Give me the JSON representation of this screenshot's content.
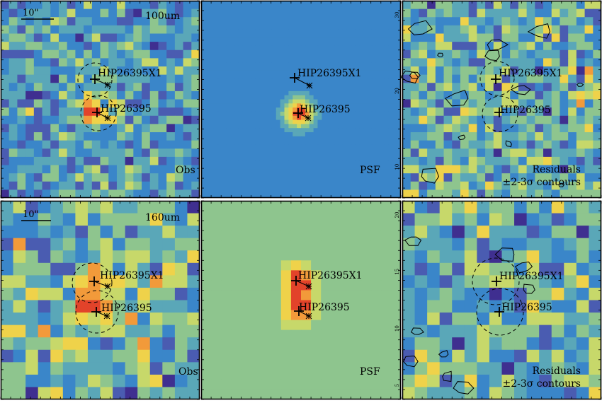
{
  "figure": {
    "panels": [
      {
        "id": "obs-100",
        "kind": "map",
        "colors": [
          "#3f2f90",
          "#4a5cb1",
          "#3a86c9",
          "#5aa7b8",
          "#8ec58e",
          "#c7d86a",
          "#efd24a",
          "#f29a3a",
          "#e2432a"
        ],
        "pixels": 24,
        "seed": 11,
        "noise_center": 0.34,
        "noise_spread": 0.26,
        "sources": [
          {
            "u": 0.47,
            "v": 0.56,
            "amp": 0.65,
            "sig": 0.055
          },
          {
            "u": 0.48,
            "v": 0.38,
            "amp": 0.12,
            "sig": 0.04
          }
        ],
        "corner_label": "Obs",
        "band_label": "100um",
        "scale_bar_label": "10\"",
        "show_scale_bar": true,
        "targets": [
          {
            "name": "HIP26395X1",
            "circle": true
          },
          {
            "name": "HIP26395",
            "circle": true
          }
        ]
      },
      {
        "id": "psf-100",
        "kind": "psf",
        "colors": [
          "#3f2f90",
          "#4a5cb1",
          "#3a86c9",
          "#5aa7b8",
          "#8ec58e",
          "#c7d86a",
          "#efd24a",
          "#f29a3a",
          "#e2432a"
        ],
        "pixels": 48,
        "base": 0.27,
        "sources": [
          {
            "u": 0.49,
            "v": 0.57,
            "amp": 0.72,
            "sig": 0.05
          }
        ],
        "corner_label": "PSF",
        "band_label": "",
        "scale_bar_label": "",
        "show_scale_bar": false,
        "y_ticks": [
          "30",
          "20",
          "10"
        ],
        "targets": [
          {
            "name": "HIP26395X1",
            "circle": false
          },
          {
            "name": "HIP26395",
            "circle": false
          }
        ]
      },
      {
        "id": "res-100",
        "kind": "residual",
        "colors": [
          "#3f2f90",
          "#4a5cb1",
          "#3a86c9",
          "#5aa7b8",
          "#8ec58e",
          "#c7d86a",
          "#efd24a",
          "#f29a3a",
          "#e2432a"
        ],
        "pixels": 24,
        "seed": 27,
        "noise_center": 0.42,
        "noise_spread": 0.3,
        "sources": [],
        "corner_label": "Residuals",
        "corner_label_2": "±2-3σ contours",
        "band_label": "",
        "scale_bar_label": "",
        "show_scale_bar": false,
        "targets": [
          {
            "name": "HIP26395X1",
            "circle": true
          },
          {
            "name": "HIP26395",
            "circle": true
          }
        ]
      },
      {
        "id": "obs-160",
        "kind": "map",
        "colors": [
          "#3f2f90",
          "#4a5cb1",
          "#3a86c9",
          "#5aa7b8",
          "#8ec58e",
          "#c7d86a",
          "#efd24a",
          "#f29a3a",
          "#e2432a"
        ],
        "pixels": 16,
        "seed": 5,
        "noise_center": 0.45,
        "noise_spread": 0.34,
        "sources": [
          {
            "u": 0.46,
            "v": 0.52,
            "amp": 0.38,
            "sig": 0.08
          },
          {
            "u": 0.46,
            "v": 0.38,
            "amp": 0.22,
            "sig": 0.07
          }
        ],
        "corner_label": "Obs",
        "band_label": "160um",
        "scale_bar_label": "10\"",
        "show_scale_bar": true,
        "targets": [
          {
            "name": "HIP26395X1",
            "circle": true
          },
          {
            "name": "HIP26395",
            "circle": true
          }
        ]
      },
      {
        "id": "psf-160",
        "kind": "psf",
        "colors": [
          "#3f2f90",
          "#4a5cb1",
          "#3a86c9",
          "#5aa7b8",
          "#8ec58e",
          "#c7d86a",
          "#efd24a",
          "#f29a3a",
          "#e2432a"
        ],
        "pixels": 20,
        "base": 0.46,
        "sources": [
          {
            "u": 0.49,
            "v": 0.4,
            "amp": 0.48,
            "sig": 0.06
          },
          {
            "u": 0.49,
            "v": 0.54,
            "amp": 0.48,
            "sig": 0.06
          }
        ],
        "corner_label": "PSF",
        "band_label": "",
        "scale_bar_label": "",
        "show_scale_bar": false,
        "y_ticks": [
          "20",
          "15",
          "10",
          "5"
        ],
        "targets": [
          {
            "name": "HIP26395X1",
            "circle": false
          },
          {
            "name": "HIP26395",
            "circle": false
          }
        ]
      },
      {
        "id": "res-160",
        "kind": "residual",
        "colors": [
          "#3f2f90",
          "#4a5cb1",
          "#3a86c9",
          "#5aa7b8",
          "#8ec58e",
          "#c7d86a",
          "#efd24a",
          "#f29a3a",
          "#e2432a"
        ],
        "pixels": 16,
        "seed": 41,
        "noise_center": 0.4,
        "noise_spread": 0.3,
        "sources": [],
        "corner_label": "Residuals",
        "corner_label_2": "±2-3σ contours",
        "band_label": "",
        "scale_bar_label": "",
        "show_scale_bar": false,
        "targets": [
          {
            "name": "HIP26395X1",
            "circle": true
          },
          {
            "name": "HIP26395",
            "circle": true
          }
        ]
      }
    ]
  }
}
